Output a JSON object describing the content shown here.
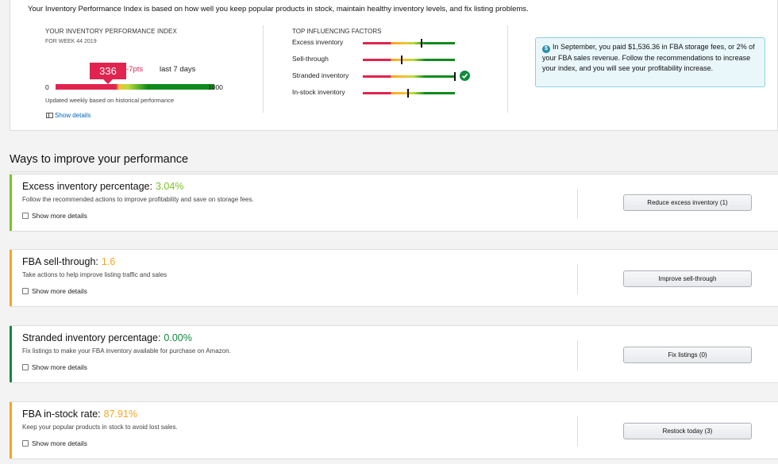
{
  "intro": "Your Inventory Performance Index is based on how well you keep popular products in stock, maintain healthy inventory levels, and fix listing problems.",
  "ipi": {
    "title": "YOUR INVENTORY PERFORMANCE INDEX",
    "week": "FOR WEEK 44 2019",
    "score": "336",
    "score_value": 336,
    "change": "-7pts",
    "period": "last 7 days",
    "min": "0",
    "max": "1000",
    "note": "Updated weekly based on historical performance",
    "show_details": "Show details"
  },
  "factors": {
    "title": "TOP INFLUENCING FACTORS",
    "items": [
      {
        "label": "Excess inventory",
        "level": 0.63
      },
      {
        "label": "Sell-through",
        "level": 0.41
      },
      {
        "label": "Stranded inventory",
        "level": 0.99
      },
      {
        "label": "In-stock inventory",
        "level": 0.48
      }
    ]
  },
  "info": {
    "icon": "dollar-icon",
    "text": "In September, you paid $1,536.36 in FBA storage fees, or 2% of your FBA sales revenue. Follow the recommendations to increase your index, and you will see your profitability increase."
  },
  "section_title": "Ways to improve your performance",
  "cards": [
    {
      "title": "Excess inventory percentage:",
      "metric": "3.04%",
      "metric_color": "#7cc426",
      "accent": "#7cc426",
      "desc": "Follow the recommended actions to improve profitability and save on storage fees.",
      "more": "Show more details",
      "button": "Reduce excess inventory (1)"
    },
    {
      "title": "FBA sell-through:",
      "metric": "1.6",
      "metric_color": "#f5a623",
      "accent": "#f5a623",
      "desc": "Take actions to help improve listing traffic and sales",
      "more": "Show more details",
      "button": "Improve sell-through"
    },
    {
      "title": "Stranded inventory percentage:",
      "metric": "0.00%",
      "metric_color": "#128a3e",
      "accent": "#128a3e",
      "desc": "Fix listings to make your FBA inventory available for purchase on Amazon.",
      "more": "Show more details",
      "button": "Fix listings (0)"
    },
    {
      "title": "FBA in-stock rate:",
      "metric": "87.91%",
      "metric_color": "#f5a623",
      "accent": "#f5a623",
      "desc": "Keep your popular products in stock to avoid lost sales.",
      "more": "Show more details",
      "button": "Restock today (3)"
    }
  ]
}
